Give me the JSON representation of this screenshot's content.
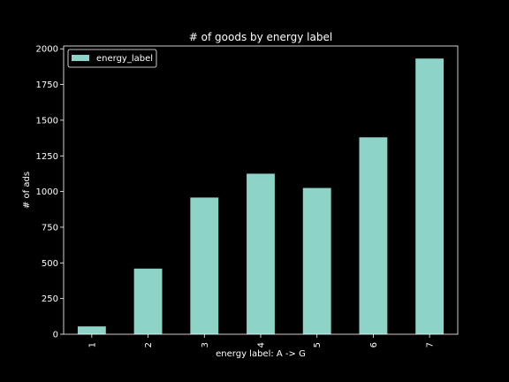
{
  "chart_data": {
    "type": "bar",
    "title": "# of goods by energy label",
    "xlabel": "energy label: A -> G",
    "ylabel": "# of ads",
    "categories": [
      "1",
      "2",
      "3",
      "4",
      "5",
      "6",
      "7"
    ],
    "series": [
      {
        "name": "energy_label",
        "values": [
          55,
          460,
          958,
          1125,
          1025,
          1380,
          1932
        ],
        "color": "#8dd3c7"
      }
    ],
    "ylim": [
      0,
      2020
    ],
    "yticks": [
      0,
      250,
      500,
      750,
      1000,
      1250,
      1500,
      1750,
      2000
    ],
    "grid": false,
    "legend_position": "top-left",
    "x_tick_rotation": "vertical",
    "background": "#000000",
    "foreground": "#ffffff"
  }
}
